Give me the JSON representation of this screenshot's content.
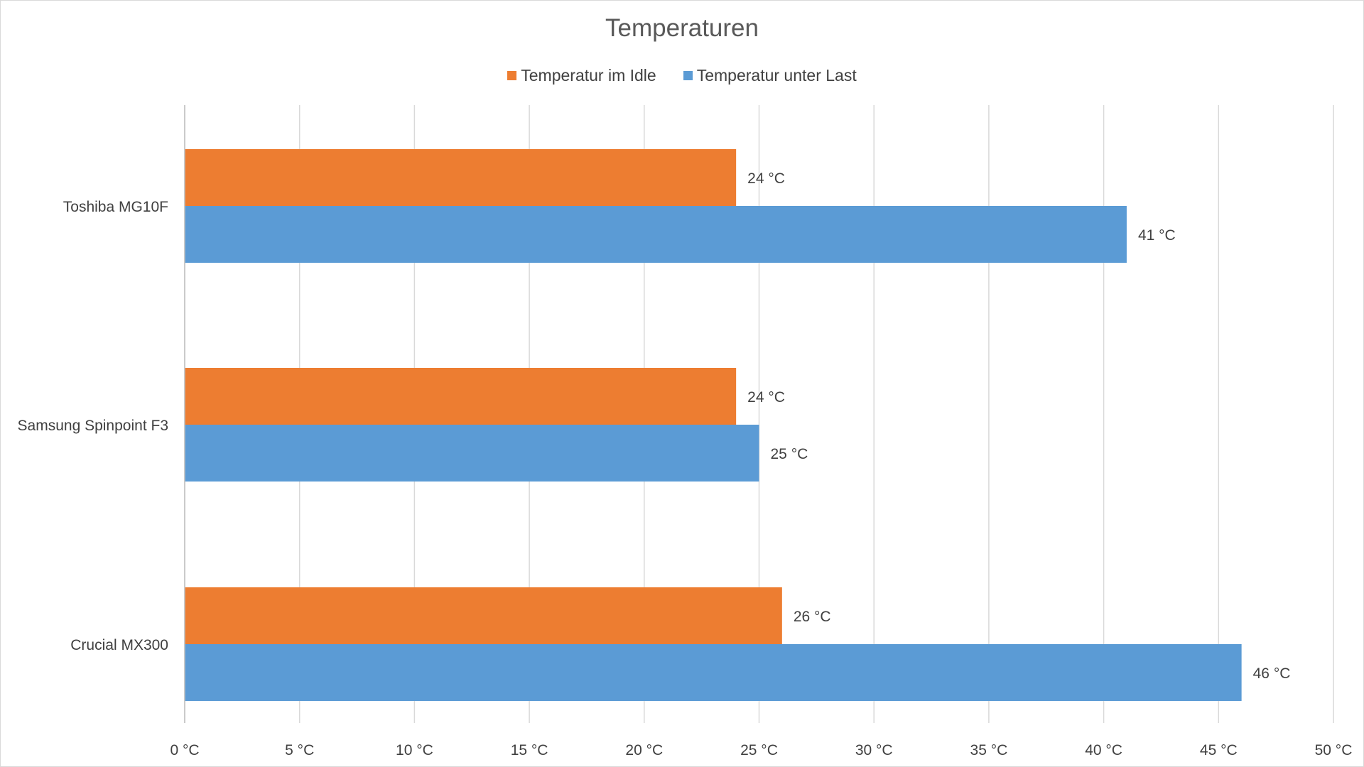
{
  "chart_data": {
    "type": "bar",
    "orientation": "horizontal",
    "title": "Temperaturen",
    "categories": [
      "Toshiba MG10F",
      "Samsung Spinpoint F3",
      "Crucial MX300"
    ],
    "series": [
      {
        "name": "Temperatur im Idle",
        "color": "#ED7D31",
        "values": [
          24,
          24,
          26
        ],
        "labels": [
          "24 °C",
          "24 °C",
          "26 °C"
        ]
      },
      {
        "name": "Temperatur unter Last",
        "color": "#5B9BD5",
        "values": [
          41,
          25,
          46
        ],
        "labels": [
          "41 °C",
          "25 °C",
          "46 °C"
        ]
      }
    ],
    "xlim": [
      0,
      50
    ],
    "xtick_values": [
      0,
      5,
      10,
      15,
      20,
      25,
      30,
      35,
      40,
      45,
      50
    ],
    "xtick_labels": [
      "0 °C",
      "5 °C",
      "10 °C",
      "15 °C",
      "20 °C",
      "25 °C",
      "30 °C",
      "35 °C",
      "40 °C",
      "45 °C",
      "50 °C"
    ],
    "xlabel": "",
    "ylabel": "",
    "grid": true,
    "legend_position": "top"
  }
}
